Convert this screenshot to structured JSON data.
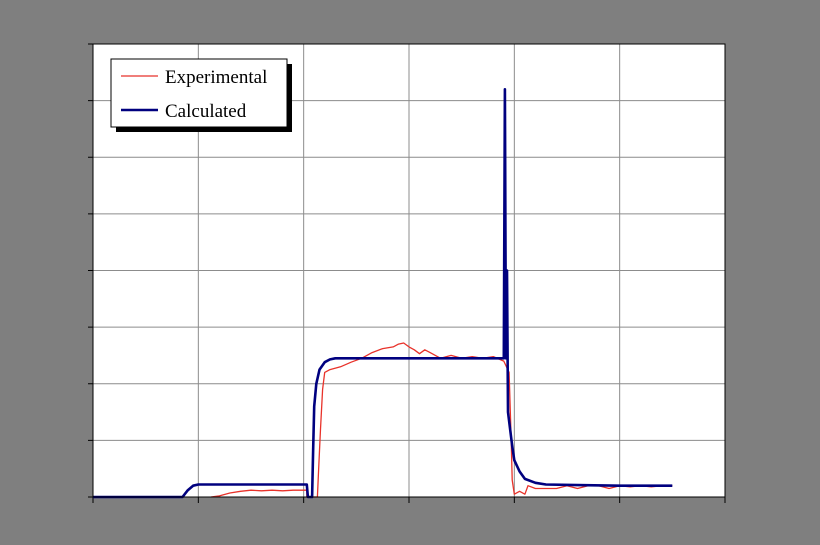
{
  "chart_data": {
    "type": "line",
    "title": "",
    "xlabel": "",
    "ylabel": "",
    "xlim": [
      0,
      6
    ],
    "ylim": [
      0,
      8
    ],
    "grid": true,
    "x_major_ticks": 6,
    "y_major_ticks": 8,
    "legend": {
      "placement": "top-left"
    },
    "colors": {
      "background": "#7f7f7f",
      "plot_area": "#ffffff",
      "grid": "#8c8c8c",
      "frame": "#000000"
    },
    "series": [
      {
        "name": "Experimental",
        "color": "#e8322a",
        "width": 1.3,
        "points": [
          [
            1.12,
            0.0
          ],
          [
            1.2,
            0.02
          ],
          [
            1.3,
            0.07
          ],
          [
            1.4,
            0.1
          ],
          [
            1.5,
            0.12
          ],
          [
            1.6,
            0.11
          ],
          [
            1.7,
            0.12
          ],
          [
            1.8,
            0.11
          ],
          [
            1.9,
            0.12
          ],
          [
            2.0,
            0.12
          ],
          [
            2.03,
            0.12
          ],
          [
            2.03,
            0.0
          ],
          [
            2.13,
            0.0
          ],
          [
            2.14,
            0.4
          ],
          [
            2.16,
            1.2
          ],
          [
            2.18,
            1.9
          ],
          [
            2.2,
            2.2
          ],
          [
            2.25,
            2.25
          ],
          [
            2.35,
            2.3
          ],
          [
            2.45,
            2.38
          ],
          [
            2.55,
            2.45
          ],
          [
            2.65,
            2.55
          ],
          [
            2.75,
            2.62
          ],
          [
            2.85,
            2.65
          ],
          [
            2.9,
            2.7
          ],
          [
            2.95,
            2.72
          ],
          [
            3.0,
            2.65
          ],
          [
            3.05,
            2.6
          ],
          [
            3.1,
            2.53
          ],
          [
            3.15,
            2.6
          ],
          [
            3.2,
            2.55
          ],
          [
            3.3,
            2.45
          ],
          [
            3.4,
            2.5
          ],
          [
            3.5,
            2.45
          ],
          [
            3.6,
            2.48
          ],
          [
            3.7,
            2.45
          ],
          [
            3.8,
            2.48
          ],
          [
            3.9,
            2.4
          ],
          [
            3.95,
            2.2
          ],
          [
            3.97,
            1.0
          ],
          [
            3.98,
            0.3
          ],
          [
            4.0,
            0.05
          ],
          [
            4.05,
            0.1
          ],
          [
            4.1,
            0.05
          ],
          [
            4.13,
            0.2
          ],
          [
            4.2,
            0.15
          ],
          [
            4.3,
            0.15
          ],
          [
            4.4,
            0.15
          ],
          [
            4.5,
            0.2
          ],
          [
            4.6,
            0.15
          ],
          [
            4.7,
            0.2
          ],
          [
            4.8,
            0.2
          ],
          [
            4.9,
            0.15
          ],
          [
            5.0,
            0.2
          ],
          [
            5.1,
            0.18
          ],
          [
            5.2,
            0.2
          ],
          [
            5.3,
            0.18
          ],
          [
            5.4,
            0.2
          ],
          [
            5.5,
            0.2
          ]
        ]
      },
      {
        "name": "Calculated",
        "color": "#00007f",
        "width": 2.6,
        "points": [
          [
            0.0,
            0.0
          ],
          [
            0.85,
            0.0
          ],
          [
            0.9,
            0.12
          ],
          [
            0.95,
            0.2
          ],
          [
            1.0,
            0.22
          ],
          [
            1.2,
            0.22
          ],
          [
            1.5,
            0.22
          ],
          [
            1.8,
            0.22
          ],
          [
            2.03,
            0.22
          ],
          [
            2.04,
            0.0
          ],
          [
            2.08,
            0.0
          ],
          [
            2.09,
            0.8
          ],
          [
            2.1,
            1.6
          ],
          [
            2.12,
            2.0
          ],
          [
            2.15,
            2.25
          ],
          [
            2.2,
            2.38
          ],
          [
            2.25,
            2.43
          ],
          [
            2.3,
            2.45
          ],
          [
            2.6,
            2.45
          ],
          [
            3.0,
            2.45
          ],
          [
            3.5,
            2.45
          ],
          [
            3.8,
            2.45
          ],
          [
            3.9,
            2.45
          ],
          [
            3.91,
            7.2
          ],
          [
            3.92,
            2.45
          ],
          [
            3.925,
            2.45
          ],
          [
            3.93,
            4.0
          ],
          [
            3.94,
            1.5
          ],
          [
            3.96,
            1.2
          ],
          [
            3.98,
            0.9
          ],
          [
            4.0,
            0.65
          ],
          [
            4.05,
            0.45
          ],
          [
            4.1,
            0.32
          ],
          [
            4.2,
            0.25
          ],
          [
            4.3,
            0.22
          ],
          [
            4.6,
            0.21
          ],
          [
            5.0,
            0.2
          ],
          [
            5.5,
            0.2
          ]
        ]
      }
    ]
  }
}
